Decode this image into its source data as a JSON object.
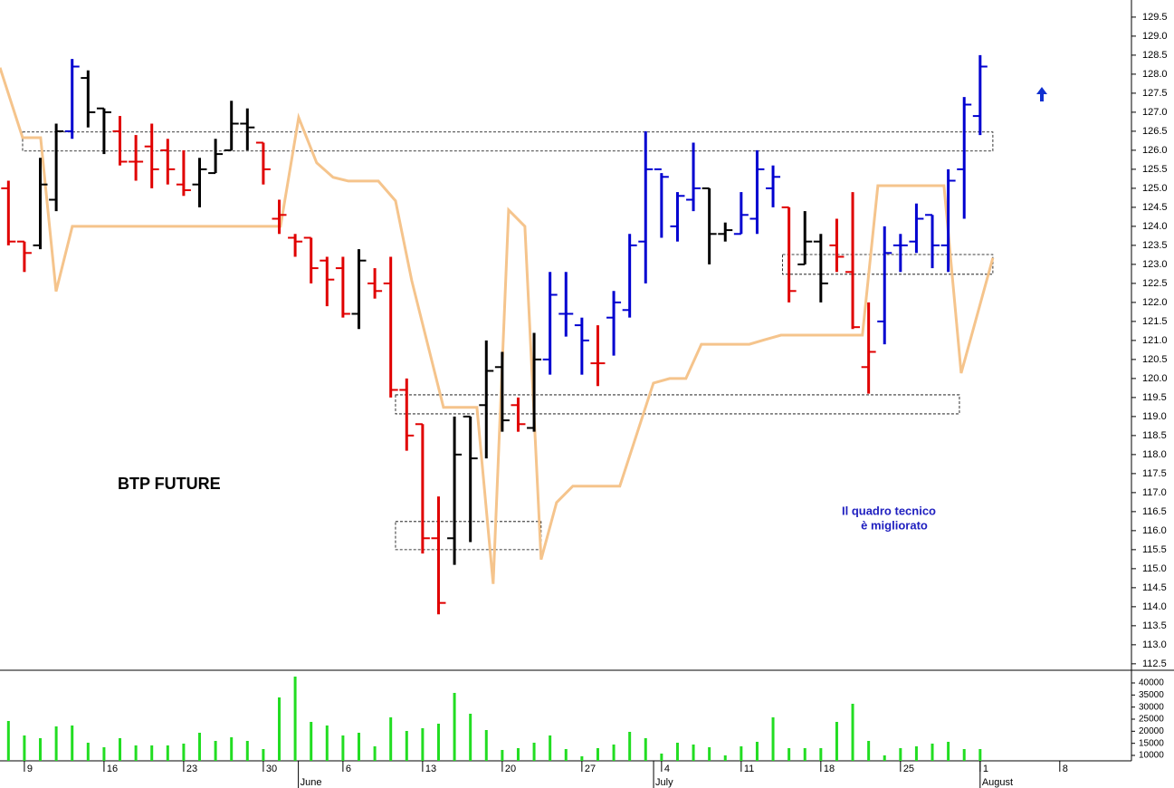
{
  "chart_data": [
    {
      "type": "ohlc",
      "title": "BTP FUTURE",
      "annotation": [
        "Il quadro tecnico",
        "è migliorato"
      ],
      "x": [
        0,
        1,
        2,
        3,
        4,
        5,
        6,
        7,
        8,
        9,
        10,
        11,
        12,
        13,
        14,
        15,
        16,
        17,
        18,
        19,
        20,
        21,
        22,
        23,
        24,
        25,
        26,
        27,
        28,
        29,
        30,
        31,
        32,
        33,
        34,
        35,
        36,
        37,
        38,
        39,
        40,
        41,
        42,
        43,
        44,
        45,
        46,
        47,
        48,
        49,
        50,
        51,
        52,
        53,
        54,
        55,
        56,
        57,
        58,
        59,
        60,
        61
      ],
      "open": [
        125.0,
        123.6,
        123.5,
        124.7,
        126.5,
        127.9,
        127.1,
        126.5,
        125.7,
        126.1,
        126.0,
        125.1,
        125.1,
        125.4,
        126.0,
        126.7,
        126.2,
        124.2,
        123.7,
        123.7,
        123.1,
        122.9,
        121.7,
        122.5,
        122.5,
        119.7,
        118.8,
        115.8,
        115.8,
        119.0,
        119.3,
        120.3,
        119.3,
        118.7,
        120.5,
        121.7,
        121.4,
        120.4,
        121.6,
        121.8,
        123.6,
        125.5,
        124.0,
        124.7,
        125.0,
        123.8,
        123.8,
        124.2,
        125.0,
        124.5,
        123.0,
        123.6,
        123.5,
        122.8,
        120.3,
        121.5,
        123.5,
        123.6,
        124.3,
        123.5,
        125.5,
        126.9
      ],
      "high": [
        125.2,
        123.6,
        125.8,
        126.7,
        128.4,
        128.1,
        127.1,
        126.9,
        126.4,
        126.7,
        126.3,
        126.0,
        125.8,
        126.3,
        127.3,
        127.1,
        126.2,
        124.7,
        123.8,
        123.7,
        123.2,
        123.2,
        123.4,
        122.9,
        123.2,
        120.0,
        118.8,
        116.9,
        119.0,
        119.0,
        121.0,
        120.7,
        119.5,
        121.2,
        122.8,
        122.8,
        121.6,
        121.4,
        122.3,
        123.8,
        126.5,
        125.4,
        124.9,
        126.2,
        125.0,
        124.1,
        124.9,
        126.0,
        125.6,
        124.5,
        124.4,
        123.8,
        124.2,
        124.9,
        122.0,
        124.0,
        123.8,
        124.6,
        124.3,
        125.5,
        127.4,
        128.5
      ],
      "low": [
        123.5,
        122.8,
        123.4,
        124.4,
        126.3,
        126.6,
        125.9,
        125.6,
        125.2,
        125.0,
        125.1,
        124.8,
        124.5,
        125.4,
        126.0,
        126.0,
        125.1,
        123.8,
        123.2,
        122.5,
        121.9,
        121.6,
        121.3,
        122.1,
        119.5,
        118.1,
        115.4,
        113.8,
        115.1,
        115.7,
        117.9,
        118.6,
        118.6,
        118.6,
        120.1,
        121.1,
        120.1,
        119.8,
        120.6,
        121.6,
        122.5,
        123.7,
        123.6,
        124.4,
        123.0,
        123.6,
        123.8,
        123.8,
        124.5,
        122.0,
        123.0,
        122.0,
        122.8,
        121.3,
        119.6,
        120.9,
        122.8,
        123.3,
        122.9,
        122.8,
        124.2,
        126.4
      ],
      "close": [
        123.6,
        123.3,
        125.1,
        126.5,
        128.2,
        127.0,
        127.0,
        125.7,
        125.7,
        125.5,
        125.5,
        124.95,
        125.5,
        125.9,
        126.7,
        126.6,
        125.5,
        124.3,
        123.6,
        122.9,
        122.6,
        121.7,
        123.1,
        122.3,
        119.7,
        118.5,
        115.8,
        114.1,
        118.0,
        117.9,
        120.2,
        118.9,
        118.8,
        120.5,
        122.2,
        121.7,
        121.0,
        120.4,
        122.0,
        123.5,
        125.5,
        125.3,
        124.8,
        125.0,
        123.8,
        123.9,
        124.3,
        125.5,
        125.3,
        122.3,
        123.6,
        122.5,
        123.2,
        121.35,
        120.7,
        123.3,
        123.5,
        124.2,
        123.5,
        125.2,
        127.2,
        128.2
      ],
      "colors": [
        "#e00000",
        "#e00000",
        "#000000",
        "#000000",
        "#0000d0",
        "#000000",
        "#000000",
        "#e00000",
        "#e00000",
        "#e00000",
        "#e00000",
        "#e00000",
        "#000000",
        "#000000",
        "#000000",
        "#000000",
        "#e00000",
        "#e00000",
        "#e00000",
        "#e00000",
        "#e00000",
        "#e00000",
        "#000000",
        "#e00000",
        "#e00000",
        "#e00000",
        "#e00000",
        "#e00000",
        "#000000",
        "#000000",
        "#000000",
        "#000000",
        "#e00000",
        "#000000",
        "#0000d0",
        "#0000d0",
        "#0000d0",
        "#e00000",
        "#0000d0",
        "#0000d0",
        "#0000d0",
        "#0000d0",
        "#0000d0",
        "#0000d0",
        "#000000",
        "#000000",
        "#0000d0",
        "#0000d0",
        "#0000d0",
        "#e00000",
        "#000000",
        "#000000",
        "#e00000",
        "#e00000",
        "#e00000",
        "#0000d0",
        "#0000d0",
        "#0000d0",
        "#0000d0",
        "#0000d0",
        "#0000d0",
        "#0000d0"
      ],
      "overlay": {
        "color": "#f5c48c",
        "x": [
          -0.53,
          0.89,
          2.02,
          2.99,
          4.01,
          17.08,
          18.22,
          19.35,
          20.38,
          21.34,
          23.22,
          24.3,
          25.32,
          27.31,
          29.41,
          30.43,
          31.4,
          32.42,
          33.44,
          34.41,
          35.43,
          38.38,
          40.49,
          41.51,
          42.53,
          43.5,
          46.51,
          47.48,
          48.5,
          53.61,
          54.58,
          58.73,
          59.81,
          61.8
        ],
        "values": [
          128.17,
          126.33,
          126.33,
          122.29,
          124.0,
          124.0,
          126.86,
          125.67,
          125.29,
          125.19,
          125.19,
          124.67,
          122.57,
          119.24,
          119.24,
          114.6,
          124.43,
          124.0,
          115.24,
          116.74,
          117.17,
          117.17,
          119.88,
          120.0,
          120.0,
          120.9,
          120.9,
          121.02,
          121.14,
          121.14,
          125.07,
          125.07,
          120.14,
          123.17
        ]
      },
      "zones": [
        {
          "x": [
            0.89,
            61.8
          ],
          "y": [
            125.98,
            126.48
          ]
        },
        {
          "x": [
            24.3,
            59.7
          ],
          "y": [
            119.07,
            119.57
          ]
        },
        {
          "x": [
            24.3,
            33.44
          ],
          "y": [
            115.5,
            116.24
          ]
        },
        {
          "x": [
            48.6,
            61.8
          ],
          "y": [
            122.74,
            123.26
          ]
        }
      ],
      "xlim": [
        -0.53,
        70.5
      ],
      "ylim": [
        112.33,
        129.95
      ],
      "yticks": [
        {
          "value": 112.5,
          "label": "112.5"
        },
        {
          "value": 113,
          "label": "113.0"
        },
        {
          "value": 113.5,
          "label": "113.5"
        },
        {
          "value": 114,
          "label": "114.0"
        },
        {
          "value": 114.5,
          "label": "114.5"
        },
        {
          "value": 115,
          "label": "115.0"
        },
        {
          "value": 115.5,
          "label": "115.5"
        },
        {
          "value": 116,
          "label": "116.0"
        },
        {
          "value": 116.5,
          "label": "116.5"
        },
        {
          "value": 117,
          "label": "117.0"
        },
        {
          "value": 117.5,
          "label": "117.5"
        },
        {
          "value": 118,
          "label": "118.0"
        },
        {
          "value": 118.5,
          "label": "118.5"
        },
        {
          "value": 119,
          "label": "119.0"
        },
        {
          "value": 119.5,
          "label": "119.5"
        },
        {
          "value": 120,
          "label": "120.0"
        },
        {
          "value": 120.5,
          "label": "120.5"
        },
        {
          "value": 121,
          "label": "121.0"
        },
        {
          "value": 121.5,
          "label": "121.5"
        },
        {
          "value": 122,
          "label": "122.0"
        },
        {
          "value": 122.5,
          "label": "122.5"
        },
        {
          "value": 123,
          "label": "123.0"
        },
        {
          "value": 123.5,
          "label": "123.5"
        },
        {
          "value": 124,
          "label": "124.0"
        },
        {
          "value": 124.5,
          "label": "124.5"
        },
        {
          "value": 125,
          "label": "125.0"
        },
        {
          "value": 125.5,
          "label": "125.5"
        },
        {
          "value": 126,
          "label": "126.0"
        },
        {
          "value": 126.5,
          "label": "126.5"
        },
        {
          "value": 127,
          "label": "127.0"
        },
        {
          "value": 127.5,
          "label": "127.5"
        },
        {
          "value": 128,
          "label": "128.0"
        },
        {
          "value": 128.5,
          "label": "128.5"
        },
        {
          "value": 129,
          "label": "129.0"
        },
        {
          "value": 129.5,
          "label": "129.5"
        }
      ]
    },
    {
      "type": "bar",
      "color": "#22dd22",
      "x": [
        0,
        1,
        2,
        3,
        4,
        5,
        6,
        7,
        8,
        9,
        10,
        11,
        12,
        13,
        14,
        15,
        16,
        17,
        18,
        19,
        20,
        21,
        22,
        23,
        24,
        25,
        26,
        27,
        28,
        29,
        30,
        31,
        32,
        33,
        34,
        35,
        36,
        37,
        38,
        39,
        40,
        41,
        42,
        43,
        44,
        45,
        46,
        47,
        48,
        49,
        50,
        51,
        52,
        53,
        54,
        55,
        56,
        57,
        58,
        59,
        60,
        61
      ],
      "values": [
        24250,
        18250,
        17125,
        22000,
        22375,
        15250,
        13375,
        17125,
        14125,
        14125,
        14125,
        14875,
        19375,
        16000,
        17500,
        16000,
        12625,
        34000,
        42625,
        23875,
        22375,
        18250,
        19375,
        13750,
        25750,
        20125,
        21250,
        23125,
        35875,
        27250,
        20500,
        12250,
        13000,
        15250,
        18250,
        12625,
        9625,
        13000,
        14500,
        19750,
        17125,
        10750,
        15250,
        14500,
        13375,
        10000,
        13750,
        15625,
        25750,
        13000,
        13000,
        13000,
        23875,
        31375,
        16000,
        10000,
        13000,
        13750,
        14875,
        15625,
        12625,
        12625
      ],
      "xlim": [
        -0.53,
        70.5
      ],
      "ylim": [
        7750,
        44500
      ],
      "yticks": [
        10000,
        15000,
        20000,
        25000,
        30000,
        35000,
        40000
      ],
      "xticks": [
        {
          "value": 1,
          "label": "9"
        },
        {
          "value": 6,
          "label": "16"
        },
        {
          "value": 11,
          "label": "23"
        },
        {
          "value": 16,
          "label": "30"
        },
        {
          "value": 21,
          "label": "6"
        },
        {
          "value": 26,
          "label": "13"
        },
        {
          "value": 31,
          "label": "20"
        },
        {
          "value": 36,
          "label": "27"
        },
        {
          "value": 41,
          "label": "4"
        },
        {
          "value": 46,
          "label": "11"
        },
        {
          "value": 51,
          "label": "18"
        },
        {
          "value": 56,
          "label": "25"
        },
        {
          "value": 61,
          "label": "1"
        },
        {
          "value": 66,
          "label": "8"
        }
      ],
      "month_ticks": [
        {
          "value": 18.2,
          "label": "June"
        },
        {
          "value": 40.5,
          "label": "July"
        },
        {
          "value": 61,
          "label": "August"
        }
      ]
    }
  ]
}
